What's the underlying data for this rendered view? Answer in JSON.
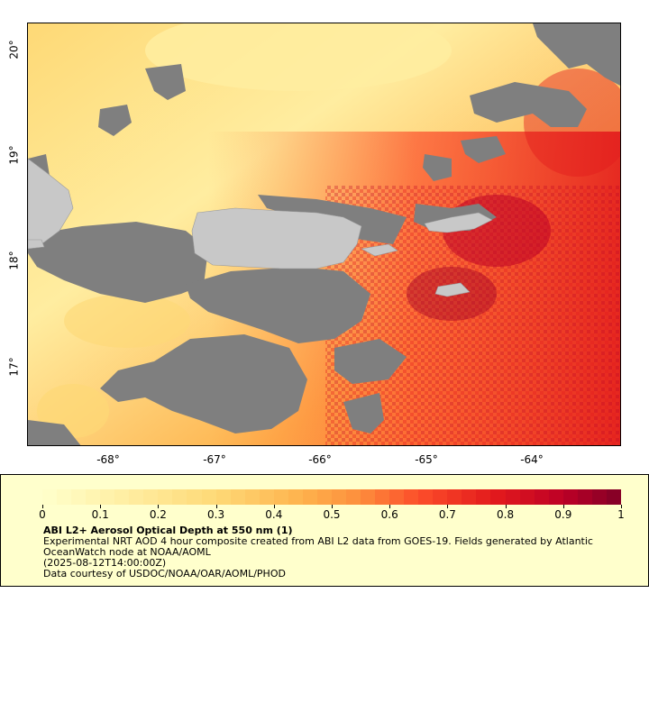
{
  "legend": {
    "title": "ABI L2+ Aerosol Optical Depth at 550 nm (1)",
    "description": "Experimental NRT AOD 4 hour composite created from ABI L2 data from GOES-19. Fields generated by Atlantic OceanWatch node at NOAA/AOML",
    "timestamp": "(2025-08-12T14:00:00Z)",
    "credit": "Data courtesy of USDOC/NOAA/OAR/AOML/PHOD",
    "scale_labels": [
      "0",
      "0.1",
      "0.2",
      "0.3",
      "0.4",
      "0.5",
      "0.6",
      "0.7",
      "0.8",
      "0.9",
      "1"
    ],
    "scale_min": 0,
    "scale_max": 1
  },
  "map": {
    "x_ticks": [
      "-68°",
      "-67°",
      "-66°",
      "-65°",
      "-64°"
    ],
    "y_ticks": [
      "20°",
      "19°",
      "18°",
      "17°"
    ],
    "lon_range": [
      -68.8,
      -63.2
    ],
    "lat_range": [
      16.3,
      20.2
    ],
    "colors": {
      "land": "#c8c8c8",
      "no_data": "#7f7f7f",
      "low_aod": "#fff0a0",
      "mid_aod": "#fc8d3c",
      "high_aod": "#b10026"
    },
    "regions": [
      {
        "name": "Puerto Rico",
        "type": "land"
      },
      {
        "name": "Hispaniola",
        "type": "land"
      },
      {
        "name": "Virgin Islands",
        "type": "land"
      }
    ]
  }
}
